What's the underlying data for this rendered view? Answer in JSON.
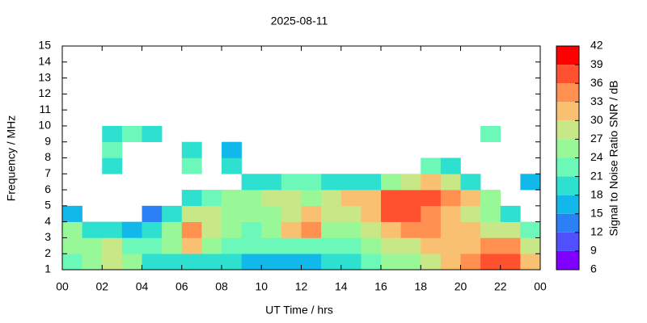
{
  "chart_data": {
    "type": "heatmap",
    "title": "2025-08-11",
    "xlabel": "UT Time / hrs",
    "ylabel": "Frequency / MHz",
    "x": [
      0,
      1,
      2,
      3,
      4,
      5,
      6,
      7,
      8,
      9,
      10,
      11,
      12,
      13,
      14,
      15,
      16,
      17,
      18,
      19,
      20,
      21,
      22,
      23
    ],
    "y": [
      1,
      2,
      3,
      4,
      5,
      6,
      7,
      8,
      9,
      10,
      11,
      12,
      13,
      14
    ],
    "z": [
      [
        22,
        24,
        27,
        25,
        20,
        18,
        18,
        19,
        18,
        17,
        17,
        16,
        17,
        18,
        20,
        22,
        24,
        25,
        27,
        30,
        33,
        36,
        36,
        30
      ],
      [
        24,
        26,
        27,
        23,
        21,
        24,
        30,
        26,
        22,
        21,
        21,
        22,
        22,
        21,
        22,
        24,
        27,
        28,
        30,
        31,
        32,
        33,
        33,
        28
      ],
      [
        24,
        20,
        18,
        15,
        20,
        25,
        33,
        28,
        24,
        23,
        26,
        30,
        34,
        25,
        24,
        27,
        32,
        33,
        33,
        32,
        30,
        28,
        27,
        22
      ],
      [
        15,
        null,
        null,
        null,
        14,
        20,
        28,
        27,
        25,
        25,
        26,
        28,
        32,
        28,
        27,
        30,
        36,
        36,
        33,
        32,
        28,
        25,
        20,
        null
      ],
      [
        null,
        null,
        null,
        null,
        null,
        null,
        18,
        22,
        24,
        26,
        28,
        28,
        26,
        27,
        30,
        32,
        36,
        36,
        36,
        34,
        30,
        25,
        null,
        null
      ],
      [
        null,
        null,
        null,
        null,
        null,
        null,
        null,
        null,
        null,
        18,
        20,
        22,
        22,
        20,
        20,
        18,
        25,
        28,
        30,
        28,
        18,
        null,
        null,
        15
      ],
      [
        null,
        null,
        20,
        null,
        null,
        null,
        21,
        null,
        18,
        null,
        null,
        null,
        null,
        null,
        null,
        null,
        null,
        null,
        22,
        20,
        null,
        null,
        null,
        null
      ],
      [
        null,
        null,
        21,
        null,
        null,
        null,
        20,
        null,
        16,
        null,
        null,
        null,
        null,
        null,
        null,
        null,
        null,
        null,
        null,
        null,
        null,
        null,
        null,
        null
      ],
      [
        null,
        null,
        20,
        22,
        20,
        null,
        null,
        null,
        null,
        null,
        null,
        null,
        null,
        null,
        null,
        null,
        null,
        null,
        null,
        null,
        null,
        22,
        null,
        null
      ],
      [
        null,
        null,
        null,
        null,
        null,
        null,
        null,
        null,
        null,
        null,
        null,
        null,
        null,
        null,
        null,
        null,
        null,
        null,
        null,
        null,
        null,
        null,
        null,
        null
      ],
      [
        null,
        null,
        null,
        null,
        null,
        null,
        null,
        null,
        null,
        null,
        null,
        null,
        null,
        null,
        null,
        null,
        null,
        null,
        null,
        null,
        null,
        null,
        null,
        null
      ],
      [
        null,
        null,
        null,
        null,
        null,
        null,
        null,
        null,
        null,
        null,
        null,
        null,
        null,
        null,
        null,
        null,
        null,
        null,
        null,
        null,
        null,
        null,
        null,
        null
      ],
      [
        null,
        null,
        null,
        null,
        null,
        null,
        null,
        null,
        null,
        null,
        null,
        null,
        null,
        null,
        null,
        null,
        null,
        null,
        null,
        null,
        null,
        null,
        null,
        null
      ],
      [
        null,
        null,
        null,
        null,
        null,
        null,
        null,
        null,
        null,
        null,
        null,
        null,
        null,
        null,
        null,
        null,
        null,
        null,
        null,
        null,
        null,
        null,
        null,
        null
      ]
    ],
    "xlim": [
      0,
      24
    ],
    "xticks": [
      {
        "value": 0,
        "label": "00"
      },
      {
        "value": 2,
        "label": "02"
      },
      {
        "value": 4,
        "label": "04"
      },
      {
        "value": 6,
        "label": "06"
      },
      {
        "value": 8,
        "label": "08"
      },
      10,
      12,
      14,
      16,
      18,
      20,
      22,
      {
        "value": 24,
        "label": "00"
      }
    ],
    "ylim": [
      1,
      15
    ],
    "yticks": [
      1,
      2,
      3,
      4,
      5,
      6,
      7,
      8,
      9,
      10,
      11,
      12,
      13,
      14,
      15
    ],
    "colorbar": {
      "label": "Signal to Noise Ratio SNR / dB",
      "ticks": [
        6,
        9,
        12,
        15,
        18,
        21,
        24,
        27,
        30,
        33,
        36,
        39,
        42
      ],
      "colors": [
        "#8000ff",
        "#5050ff",
        "#2b80f6",
        "#12b8ea",
        "#2ee0d0",
        "#6cf8b8",
        "#98f898",
        "#c8e888",
        "#f8c070",
        "#ff9050",
        "#ff5030",
        "#ff0000"
      ]
    }
  }
}
